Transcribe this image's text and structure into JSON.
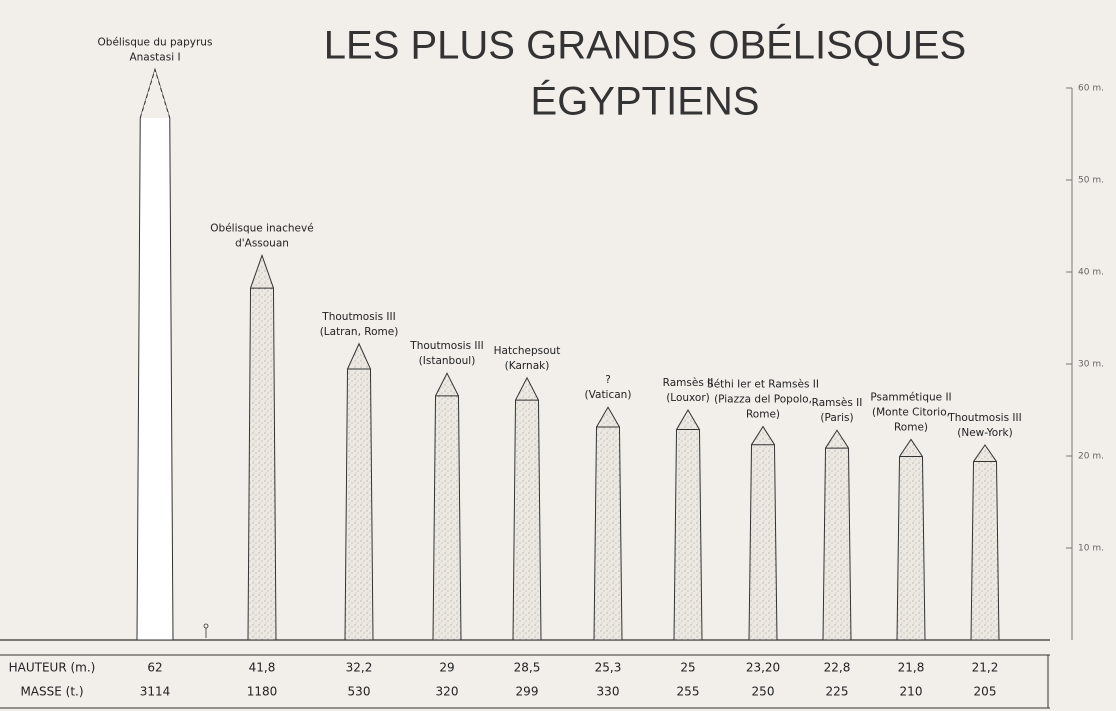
{
  "chart_data": {
    "type": "bar",
    "title": [
      "LES PLUS GRANDS OBÉLISQUES",
      "ÉGYPTIENS"
    ],
    "categories": [
      [
        "Obélisque du papyrus",
        "Anastasi I"
      ],
      [
        "Obélisque inachevé",
        "d'Assouan"
      ],
      [
        "Thoutmosis III",
        "(Latran, Rome)"
      ],
      [
        "Thoutmosis III",
        "(Istanboul)"
      ],
      [
        "Hatchepsout",
        "(Karnak)"
      ],
      [
        "?",
        "(Vatican)"
      ],
      [
        "Ramsès II",
        "(Louxor)"
      ],
      [
        "Séthi Ier et Ramsès II",
        "(Piazza del Popolo,",
        "Rome)"
      ],
      [
        "Ramsès II",
        "(Paris)"
      ],
      [
        "Psammétique II",
        "(Monte Citorio,",
        "Rome)"
      ],
      [
        "Thoutmosis III",
        "(New-York)"
      ]
    ],
    "values": [
      62,
      41.8,
      32.2,
      29,
      28.5,
      25.3,
      25,
      23.2,
      22.8,
      21.8,
      21.2
    ],
    "value_labels": [
      "62",
      "41,8",
      "32,2",
      "29",
      "28,5",
      "25,3",
      "25",
      "23,20",
      "22,8",
      "21,8",
      "21,2"
    ],
    "masses": [
      3114,
      1180,
      530,
      320,
      299,
      330,
      255,
      250,
      225,
      210,
      205
    ],
    "colors": [
      "#ffffff",
      "#e9e3db",
      "#e9e3db",
      "#e9e3db",
      "#e9e3db",
      "#e9e3db",
      "#e9e3db",
      "#e9e3db",
      "#e9e3db",
      "#e9e3db",
      "#e9e3db"
    ],
    "row_labels": [
      "HAUTEUR (m.)",
      "MASSE (t.)"
    ],
    "ylim": [
      0,
      60
    ],
    "yticks": [
      {
        "value": 10,
        "label": "10 m."
      },
      {
        "value": 20,
        "label": "20 m."
      },
      {
        "value": 30,
        "label": "30 m."
      },
      {
        "value": 40,
        "label": "40 m."
      },
      {
        "value": 50,
        "label": "50 m."
      },
      {
        "value": 60,
        "label": "60 m."
      }
    ]
  }
}
